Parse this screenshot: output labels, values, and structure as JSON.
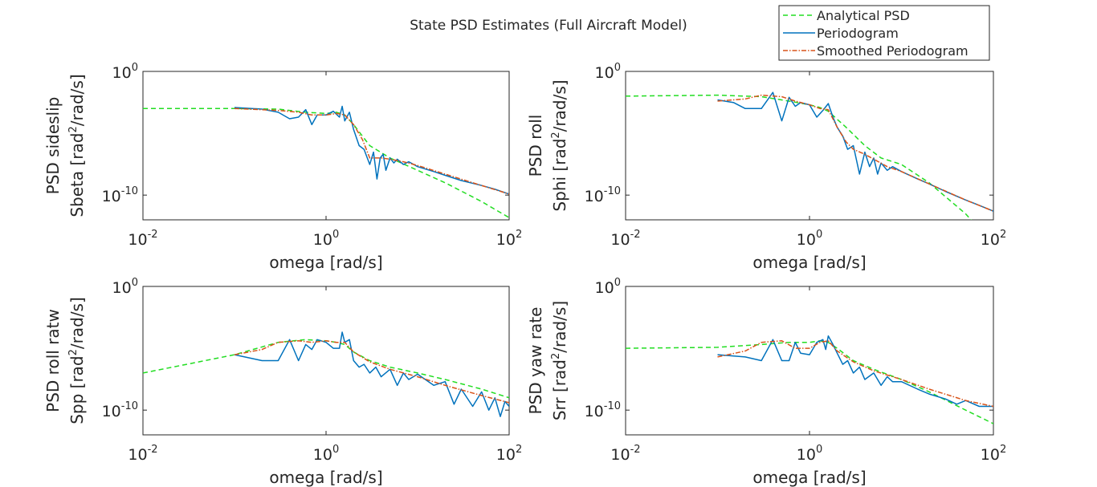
{
  "figure_title": "State PSD Estimates (Full Aircraft Model)",
  "legend": {
    "items": [
      {
        "label": "Analytical PSD",
        "color": "#22dd22",
        "style": "dashed"
      },
      {
        "label": "Periodogram",
        "color": "#0072bd",
        "style": "solid"
      },
      {
        "label": "Smoothed Periodogram",
        "color": "#d95319",
        "style": "dashdot"
      }
    ]
  },
  "chart_data": [
    {
      "type": "line",
      "ylabel_line1": "PSD sideslip",
      "ylabel_line2_prefix": "Sbeta [rad",
      "ylabel_sup": "2",
      "ylabel_line2_suffix": "/rad/s]",
      "xlabel": "omega [rad/s]",
      "xscale": "log",
      "yscale": "log",
      "xlim": [
        0.01,
        100
      ],
      "ylim": [
        1e-12,
        1
      ],
      "xticks": [
        {
          "base": "10",
          "exp": "-2"
        },
        {
          "base": "10",
          "exp": "0"
        },
        {
          "base": "10",
          "exp": "2"
        }
      ],
      "yticks": [
        {
          "base": "10",
          "exp": "0"
        },
        {
          "base": "10",
          "exp": "-10"
        }
      ],
      "series": [
        {
          "name": "Analytical PSD",
          "x": [
            0.01,
            0.1,
            0.3,
            0.6,
            1.0,
            1.3,
            1.6,
            2.0,
            3.0,
            5.0,
            10,
            20,
            50,
            100
          ],
          "y": [
            0.001,
            0.001,
            0.0009,
            0.0005,
            0.0004,
            0.0005,
            0.0003,
            5e-05,
            1e-06,
            1e-07,
            1e-08,
            1e-09,
            3e-11,
            1.5e-12
          ]
        },
        {
          "name": "Periodogram",
          "x": [
            0.1,
            0.2,
            0.3,
            0.4,
            0.5,
            0.6,
            0.7,
            0.8,
            1.0,
            1.2,
            1.4,
            1.5,
            1.6,
            1.8,
            2.0,
            2.3,
            2.6,
            3.0,
            3.3,
            3.6,
            3.9,
            4.2,
            4.5,
            5.0,
            5.5,
            6.0,
            7.0,
            8.0,
            10,
            15,
            20,
            30,
            50,
            70,
            100
          ],
          "y": [
            0.0012,
            0.0009,
            0.0005,
            0.00015,
            0.0002,
            0.0008,
            5e-05,
            0.0003,
            0.0003,
            0.0006,
            0.0002,
            0.0015,
            0.0001,
            0.0005,
            2e-05,
            1e-06,
            5e-07,
            3e-08,
            3e-07,
            2e-09,
            1e-07,
            2e-07,
            1e-08,
            1e-07,
            4e-08,
            8e-08,
            3e-08,
            5e-08,
            2e-08,
            8e-09,
            4e-09,
            1.5e-09,
            6e-10,
            3e-10,
            1.2e-10
          ]
        },
        {
          "name": "Smoothed Periodogram",
          "x": [
            0.1,
            0.3,
            0.5,
            0.7,
            1.0,
            1.3,
            1.6,
            2.0,
            2.5,
            3.0,
            4.0,
            5.0,
            7.0,
            10,
            20,
            50,
            100
          ],
          "y": [
            0.001,
            0.0007,
            0.0005,
            0.0003,
            0.0003,
            0.0004,
            0.0003,
            5e-05,
            3e-06,
            1e-07,
            1e-07,
            8e-08,
            5e-08,
            2.5e-08,
            5e-09,
            6e-10,
            1.2e-10
          ]
        }
      ]
    },
    {
      "type": "line",
      "ylabel_line1": "PSD roll",
      "ylabel_line2_prefix": "Sphi [rad",
      "ylabel_sup": "2",
      "ylabel_line2_suffix": "/rad/s]",
      "xlabel": "omega [rad/s]",
      "xscale": "log",
      "yscale": "log",
      "xlim": [
        0.01,
        100
      ],
      "ylim": [
        1e-12,
        1
      ],
      "xticks": [
        {
          "base": "10",
          "exp": "-2"
        },
        {
          "base": "10",
          "exp": "0"
        },
        {
          "base": "10",
          "exp": "2"
        }
      ],
      "yticks": [
        {
          "base": "10",
          "exp": "0"
        },
        {
          "base": "10",
          "exp": "-10"
        }
      ],
      "series": [
        {
          "name": "Analytical PSD",
          "x": [
            0.01,
            0.1,
            0.3,
            0.6,
            1.0,
            1.3,
            1.6,
            2.5,
            4.0,
            6.0,
            10,
            20,
            50,
            100
          ],
          "y": [
            0.01,
            0.012,
            0.009,
            0.004,
            0.002,
            0.0012,
            0.0006,
            3e-05,
            1e-06,
            1e-07,
            3e-08,
            1e-09,
            3e-12,
            1e-14
          ]
        },
        {
          "name": "Periodogram",
          "x": [
            0.1,
            0.15,
            0.2,
            0.3,
            0.4,
            0.5,
            0.6,
            0.7,
            0.8,
            1.0,
            1.2,
            1.4,
            1.6,
            1.8,
            2.0,
            2.3,
            2.6,
            3.0,
            3.5,
            4.0,
            4.5,
            5.0,
            5.5,
            6.0,
            7.0,
            8.0,
            10,
            15,
            20,
            30,
            50,
            70,
            100
          ],
          "y": [
            0.005,
            0.003,
            0.001,
            0.001,
            0.02,
            0.0001,
            0.008,
            0.0015,
            0.003,
            0.002,
            0.0002,
            0.0007,
            0.0025,
            0.0002,
            3e-05,
            6e-06,
            5e-07,
            1e-06,
            5e-09,
            3e-07,
            2e-08,
            1e-07,
            5e-09,
            4e-08,
            1e-08,
            2e-08,
            8e-09,
            2e-09,
            8e-10,
            2e-10,
            4e-11,
            1.5e-11,
            5e-12
          ]
        },
        {
          "name": "Smoothed Periodogram",
          "x": [
            0.1,
            0.2,
            0.3,
            0.5,
            0.7,
            1.0,
            1.3,
            1.6,
            2.0,
            2.5,
            3.0,
            4.0,
            5.0,
            7.0,
            10,
            20,
            50,
            100
          ],
          "y": [
            0.004,
            0.006,
            0.012,
            0.009,
            0.004,
            0.002,
            0.001,
            0.0008,
            3e-05,
            2e-06,
            5e-07,
            2e-07,
            8e-08,
            2e-08,
            8e-09,
            8e-10,
            4e-11,
            5e-12
          ]
        }
      ]
    },
    {
      "type": "line",
      "ylabel_line1": "PSD roll ratw",
      "ylabel_line2_prefix": "Spp [rad",
      "ylabel_sup": "2",
      "ylabel_line2_suffix": "/rad/s]",
      "xlabel": "omega [rad/s]",
      "xscale": "log",
      "yscale": "log",
      "xlim": [
        0.01,
        100
      ],
      "ylim": [
        1e-12,
        1
      ],
      "xticks": [
        {
          "base": "10",
          "exp": "-2"
        },
        {
          "base": "10",
          "exp": "0"
        },
        {
          "base": "10",
          "exp": "2"
        }
      ],
      "yticks": [
        {
          "base": "10",
          "exp": "0"
        },
        {
          "base": "10",
          "exp": "-10"
        }
      ],
      "series": [
        {
          "name": "Analytical PSD",
          "x": [
            0.01,
            0.03,
            0.1,
            0.3,
            0.6,
            1.0,
            1.3,
            1.6,
            2.0,
            3.0,
            5.0,
            10,
            20,
            50,
            100
          ],
          "y": [
            1e-07,
            5e-07,
            3e-06,
            3e-05,
            5e-05,
            4e-05,
            3e-05,
            2e-05,
            5e-06,
            1e-06,
            3e-07,
            1e-07,
            3e-08,
            5e-09,
            1e-09
          ]
        },
        {
          "name": "Periodogram",
          "x": [
            0.1,
            0.2,
            0.3,
            0.4,
            0.5,
            0.6,
            0.7,
            0.8,
            1.0,
            1.2,
            1.4,
            1.5,
            1.6,
            1.8,
            2.0,
            2.3,
            2.6,
            3.0,
            3.5,
            4.0,
            5.0,
            6.0,
            7.0,
            8.0,
            10,
            15,
            20,
            25,
            30,
            40,
            50,
            60,
            70,
            80,
            90,
            100
          ],
          "y": [
            3e-06,
            1e-06,
            1e-06,
            5e-05,
            1e-06,
            2e-05,
            8e-06,
            5e-05,
            3e-05,
            1e-05,
            1e-05,
            0.0002,
            3e-05,
            5e-05,
            1e-06,
            3e-07,
            5e-07,
            1e-07,
            3e-07,
            5e-08,
            2e-07,
            1e-08,
            1e-07,
            3e-08,
            8e-08,
            1e-08,
            2e-08,
            3e-10,
            5e-09,
            2e-10,
            3e-09,
            1e-10,
            1e-09,
            3e-11,
            5e-10,
            2e-10
          ]
        },
        {
          "name": "Smoothed Periodogram",
          "x": [
            0.1,
            0.2,
            0.3,
            0.5,
            0.7,
            1.0,
            1.3,
            1.6,
            2.0,
            3.0,
            5.0,
            10,
            20,
            50,
            100
          ],
          "y": [
            3e-06,
            8e-06,
            3e-05,
            4e-05,
            3e-05,
            4e-05,
            3e-05,
            3e-05,
            5e-06,
            8e-07,
            2e-07,
            5e-08,
            1e-08,
            1.5e-09,
            4e-10
          ]
        }
      ]
    },
    {
      "type": "line",
      "ylabel_line1": "PSD yaw rate",
      "ylabel_line2_prefix": "Srr [rad",
      "ylabel_sup": "2",
      "ylabel_line2_suffix": "/rad/s]",
      "xlabel": "omega [rad/s]",
      "xscale": "log",
      "yscale": "log",
      "xlim": [
        0.01,
        100
      ],
      "ylim": [
        1e-12,
        1
      ],
      "xticks": [
        {
          "base": "10",
          "exp": "-2"
        },
        {
          "base": "10",
          "exp": "0"
        },
        {
          "base": "10",
          "exp": "2"
        }
      ],
      "yticks": [
        {
          "base": "10",
          "exp": "0"
        },
        {
          "base": "10",
          "exp": "-10"
        }
      ],
      "series": [
        {
          "name": "Analytical PSD",
          "x": [
            0.01,
            0.1,
            0.3,
            0.6,
            1.0,
            1.3,
            1.6,
            2.0,
            3.0,
            5.0,
            10,
            20,
            50,
            100
          ],
          "y": [
            1e-05,
            1.2e-05,
            2e-05,
            3e-05,
            3e-05,
            4e-05,
            3e-05,
            1e-05,
            1e-06,
            2e-07,
            3e-08,
            3e-09,
            1e-10,
            8e-12
          ]
        },
        {
          "name": "Periodogram",
          "x": [
            0.1,
            0.2,
            0.3,
            0.4,
            0.5,
            0.6,
            0.7,
            0.8,
            1.0,
            1.2,
            1.4,
            1.5,
            1.6,
            1.8,
            2.0,
            2.3,
            2.6,
            3.0,
            3.5,
            4.0,
            5.0,
            6.0,
            7.0,
            8.0,
            10,
            15,
            20,
            30,
            40,
            50,
            70,
            100
          ],
          "y": [
            3e-06,
            2e-06,
            1e-06,
            5e-05,
            1e-06,
            1e-06,
            3e-05,
            4e-06,
            3e-06,
            3e-05,
            5e-05,
            8e-06,
            0.0001,
            2e-05,
            4e-06,
            5e-07,
            1e-06,
            1e-07,
            3e-07,
            3e-08,
            1e-07,
            1e-08,
            5e-08,
            2e-08,
            2e-08,
            5e-09,
            2e-09,
            8e-10,
            3e-10,
            6e-10,
            2e-10,
            2e-10
          ]
        },
        {
          "name": "Smoothed Periodogram",
          "x": [
            0.1,
            0.2,
            0.3,
            0.5,
            0.7,
            1.0,
            1.3,
            1.6,
            2.0,
            3.0,
            5.0,
            10,
            20,
            50,
            100
          ],
          "y": [
            2e-06,
            6e-06,
            3e-05,
            4e-05,
            1e-05,
            1e-05,
            3e-05,
            4e-05,
            6e-06,
            8e-07,
            1.5e-07,
            3e-08,
            5e-09,
            6e-10,
            2e-10
          ]
        }
      ]
    }
  ]
}
